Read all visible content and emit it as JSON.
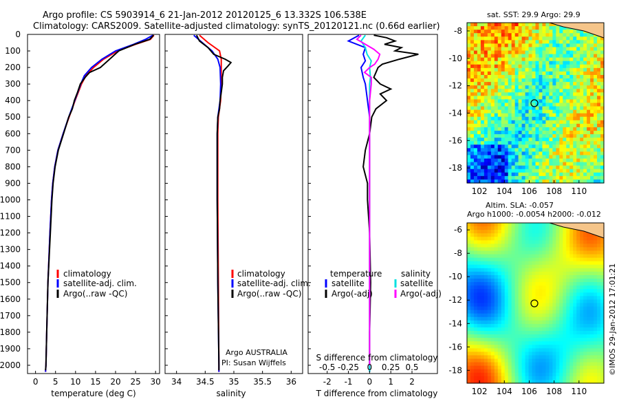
{
  "header": {
    "line1": "Argo profile: CS 5903914_6 21-Jan-2012 20120125_6 13.332S 106.538E",
    "line2": "Climatology: CARS2009. Satellite-adjusted climatology: synTS_20120121.nc (0.66d earlier)"
  },
  "colors": {
    "climatology": "#ff0000",
    "satellite": "#0000ff",
    "argo": "#000000",
    "argo_salt_diff": "#ff00ff",
    "sat_salt_diff": "#00e0e0"
  },
  "depth_axis": {
    "ylim": [
      2050,
      0
    ],
    "ticks": [
      0,
      100,
      200,
      300,
      400,
      500,
      600,
      700,
      800,
      900,
      1000,
      1100,
      1200,
      1300,
      1400,
      1500,
      1600,
      1700,
      1800,
      1900,
      2000
    ]
  },
  "chart_data": [
    {
      "type": "line",
      "xlabel": "temperature (deg C)",
      "xlim": [
        -2,
        31
      ],
      "xticks": [
        0,
        5,
        10,
        15,
        20,
        25,
        30
      ],
      "legend": [
        "climatology",
        "satellite-adj. clim.",
        "Argo(..raw -QC)"
      ],
      "series": [
        {
          "name": "climatology",
          "color": "#ff0000",
          "depth": [
            5,
            30,
            60,
            100,
            150,
            200,
            250,
            300,
            400,
            500,
            600,
            700,
            800,
            900,
            1000,
            1200,
            1500,
            1800,
            2000,
            2040
          ],
          "values": [
            29.6,
            28.7,
            25,
            20.5,
            17,
            14.5,
            12.6,
            11.5,
            9.9,
            8.4,
            6.9,
            5.6,
            4.8,
            4.3,
            4,
            3.6,
            3.1,
            2.8,
            2.6,
            2.5
          ]
        },
        {
          "name": "satellite-adj. clim.",
          "color": "#0000ff",
          "depth": [
            5,
            30,
            60,
            100,
            150,
            200,
            250,
            300,
            400,
            500,
            600,
            700,
            800,
            900,
            1000,
            1200,
            1500,
            1800,
            2000,
            2040
          ],
          "values": [
            29.3,
            27.5,
            24.5,
            20,
            16.6,
            14,
            12.2,
            11.3,
            9.8,
            8.3,
            6.9,
            5.6,
            4.8,
            4.3,
            4,
            3.6,
            3.1,
            2.8,
            2.6,
            2.5
          ]
        },
        {
          "name": "Argo(..raw -QC)",
          "color": "#000000",
          "depth": [
            5,
            30,
            60,
            100,
            150,
            200,
            230,
            260,
            300,
            350,
            400,
            450,
            500,
            600,
            700,
            800,
            900,
            1000,
            1200,
            1500,
            1800,
            2000,
            2030
          ],
          "values": [
            29.5,
            28.5,
            24.8,
            20.8,
            18.5,
            16.2,
            13.5,
            12.4,
            11.2,
            10.5,
            9.7,
            9.2,
            8.3,
            7,
            5.7,
            4.9,
            4.4,
            4.1,
            3.7,
            3.1,
            2.8,
            2.6,
            2.5
          ]
        }
      ]
    },
    {
      "type": "line",
      "xlabel": "salinity",
      "xlim": [
        33.8,
        36.2
      ],
      "xticks": [
        34,
        34.5,
        35,
        35.5,
        36
      ],
      "legend": [
        "climatology",
        "satellite-adj. clim.",
        "Argo(..raw -QC)"
      ],
      "series": [
        {
          "name": "climatology",
          "color": "#ff0000",
          "depth": [
            5,
            50,
            100,
            150,
            200,
            300,
            400,
            500,
            600,
            800,
            1000,
            1500,
            2000,
            2040
          ],
          "values": [
            34.4,
            34.55,
            34.75,
            34.78,
            34.78,
            34.78,
            34.77,
            34.73,
            34.72,
            34.72,
            34.72,
            34.73,
            34.74,
            34.74
          ]
        },
        {
          "name": "satellite-adj. clim.",
          "color": "#0000ff",
          "depth": [
            5,
            50,
            100,
            150,
            200,
            300,
            400,
            500,
            600,
            800,
            1000,
            1500,
            2000,
            2040
          ],
          "values": [
            34.3,
            34.45,
            34.62,
            34.72,
            34.76,
            34.77,
            34.76,
            34.72,
            34.71,
            34.71,
            34.71,
            34.72,
            34.74,
            34.74
          ]
        },
        {
          "name": "Argo(..raw -QC)",
          "color": "#000000",
          "depth": [
            5,
            40,
            80,
            120,
            150,
            170,
            190,
            220,
            260,
            300,
            350,
            400,
            450,
            500,
            600,
            800,
            1000,
            1500,
            2000,
            2030
          ],
          "values": [
            34.35,
            34.4,
            34.55,
            34.65,
            34.85,
            34.95,
            34.9,
            34.82,
            34.8,
            34.8,
            34.78,
            34.76,
            34.75,
            34.72,
            34.71,
            34.71,
            34.71,
            34.72,
            34.74,
            34.74
          ]
        }
      ]
    },
    {
      "type": "line",
      "xlabel": "T difference from climatology",
      "xlabel_top": "S difference from climatology",
      "xlim": [
        -2.9,
        3.2
      ],
      "xticks": [
        -2,
        -1,
        0,
        1,
        2
      ],
      "xticks_top_labels": [
        "-0.5",
        "-0.25",
        "0",
        "0.25",
        "0.5"
      ],
      "legend_left_title": "temperature",
      "legend_right_title": "salinity",
      "legend_left": [
        "satellite",
        "Argo(-adj)"
      ],
      "legend_right": [
        "satellite",
        "Argo(-adj)"
      ],
      "series": [
        {
          "name": "T satellite",
          "color": "#0000ff",
          "depth": [
            5,
            40,
            80,
            120,
            160,
            200,
            260,
            300,
            400,
            500,
            700,
            1000,
            1500,
            2000,
            2040
          ],
          "values": [
            -0.5,
            -1.0,
            -0.2,
            -0.3,
            -0.2,
            -0.4,
            -0.3,
            -0.2,
            -0.1,
            0,
            0,
            0,
            0,
            0,
            0
          ]
        },
        {
          "name": "T Argo(-adj)",
          "color": "#000000",
          "depth": [
            5,
            20,
            40,
            60,
            80,
            100,
            120,
            150,
            180,
            200,
            230,
            260,
            300,
            330,
            360,
            400,
            450,
            500,
            600,
            700,
            800,
            900,
            1000,
            1200,
            1500,
            1800,
            2000,
            2030
          ],
          "values": [
            0.2,
            0.8,
            1.2,
            0.7,
            1.5,
            1.2,
            2.3,
            1.4,
            0.6,
            0.4,
            0.3,
            0.2,
            0.5,
            1.0,
            0.5,
            0.8,
            0.3,
            0.1,
            0,
            -0.2,
            -0.3,
            -0.1,
            -0.1,
            0,
            0.05,
            0,
            0,
            0
          ]
        },
        {
          "name": "S satellite",
          "color": "#00e0e0",
          "depth": [
            5,
            40,
            80,
            120,
            160,
            200,
            260,
            300,
            400,
            500,
            700,
            1000,
            1500,
            2000,
            2040
          ],
          "values": [
            -0.05,
            -0.1,
            -0.05,
            -0.03,
            0.02,
            0.0,
            0.01,
            0.0,
            0.0,
            0.0,
            0.0,
            0.0,
            0.0,
            0.0,
            0.0
          ]
        },
        {
          "name": "S Argo(-adj)",
          "color": "#ff00ff",
          "depth": [
            5,
            30,
            60,
            90,
            120,
            150,
            180,
            200,
            230,
            260,
            300,
            350,
            400,
            450,
            500,
            700,
            1000,
            1500,
            2000
          ],
          "values": [
            -0.1,
            -0.15,
            -0.05,
            0.05,
            0.12,
            0.1,
            0.06,
            0.0,
            -0.06,
            0.02,
            0.02,
            0.01,
            0,
            0,
            0,
            0,
            0,
            0,
            0
          ]
        }
      ]
    }
  ],
  "legend_labels": {
    "clim": "climatology",
    "satadj": "satellite-adj. clim.",
    "argo_raw": "Argo(..raw -QC)",
    "temperature": "temperature",
    "salinity": "salinity",
    "satellite": "satellite",
    "argo_adj": "Argo(-adj)"
  },
  "credit": {
    "line1": "Argo AUSTRALIA",
    "line2": "PI: Susan Wijffels"
  },
  "maps": {
    "sst": {
      "title": "sat. SST: 29.9 Argo: 29.9",
      "yticks": [
        "-8",
        "-10",
        "-12",
        "-14",
        "-16",
        "-18"
      ],
      "xticks": [
        "102",
        "104",
        "106",
        "108",
        "110"
      ]
    },
    "sla": {
      "title1": "Altim. SLA: -0.057",
      "title2": "Argo h1000: -0.0054 h2000: -0.012",
      "yticks": [
        "-6",
        "-8",
        "-10",
        "-12",
        "-14",
        "-16",
        "-18"
      ],
      "xticks": [
        "102",
        "104",
        "106",
        "108",
        "110"
      ]
    }
  },
  "watermark": "©IMOS 29-Jan-2012 17:01:21"
}
